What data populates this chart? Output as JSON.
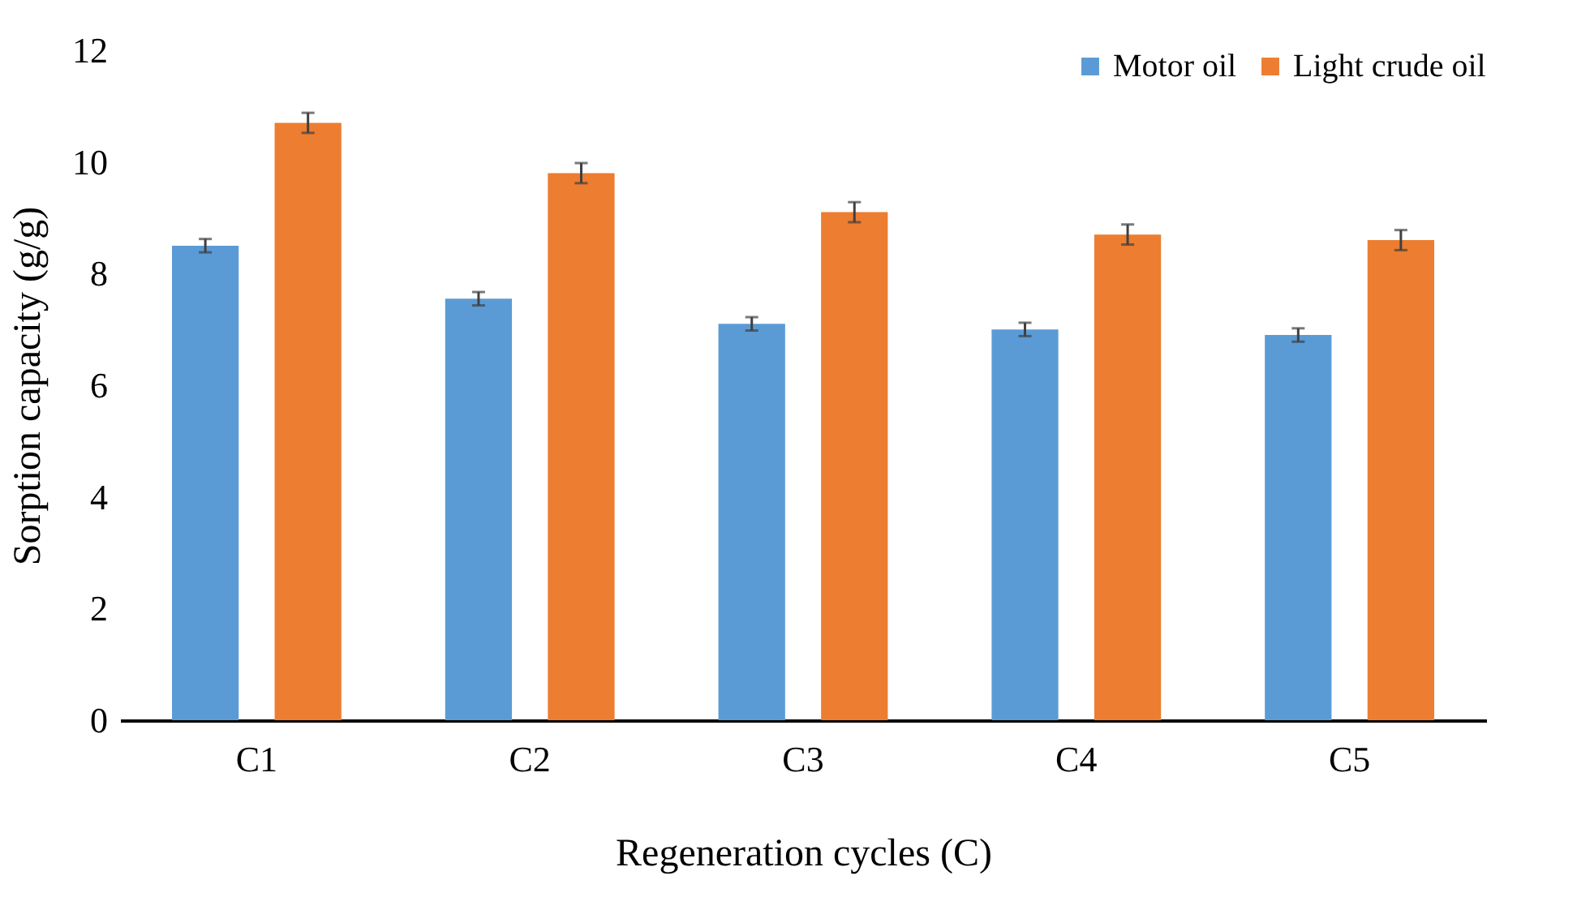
{
  "chart_data": {
    "type": "bar",
    "xlabel": "Regeneration cycles (C)",
    "ylabel": "Sorption capacity  (g/g)",
    "categories": [
      "C1",
      "C2",
      "C3",
      "C4",
      "C5"
    ],
    "series": [
      {
        "name": "Motor oil",
        "color": "#5b9bd5",
        "values": [
          8.5,
          7.55,
          7.1,
          7.0,
          6.9
        ],
        "errors": [
          0.12,
          0.12,
          0.12,
          0.12,
          0.12
        ]
      },
      {
        "name": "Light crude oil",
        "color": "#ed7d31",
        "values": [
          10.7,
          9.8,
          9.1,
          8.7,
          8.6
        ],
        "errors": [
          0.18,
          0.18,
          0.18,
          0.18,
          0.18
        ]
      }
    ],
    "ylim": [
      0,
      12
    ],
    "yticks": [
      0,
      2,
      4,
      6,
      8,
      10,
      12
    ],
    "grid": false,
    "legend": "top right"
  }
}
